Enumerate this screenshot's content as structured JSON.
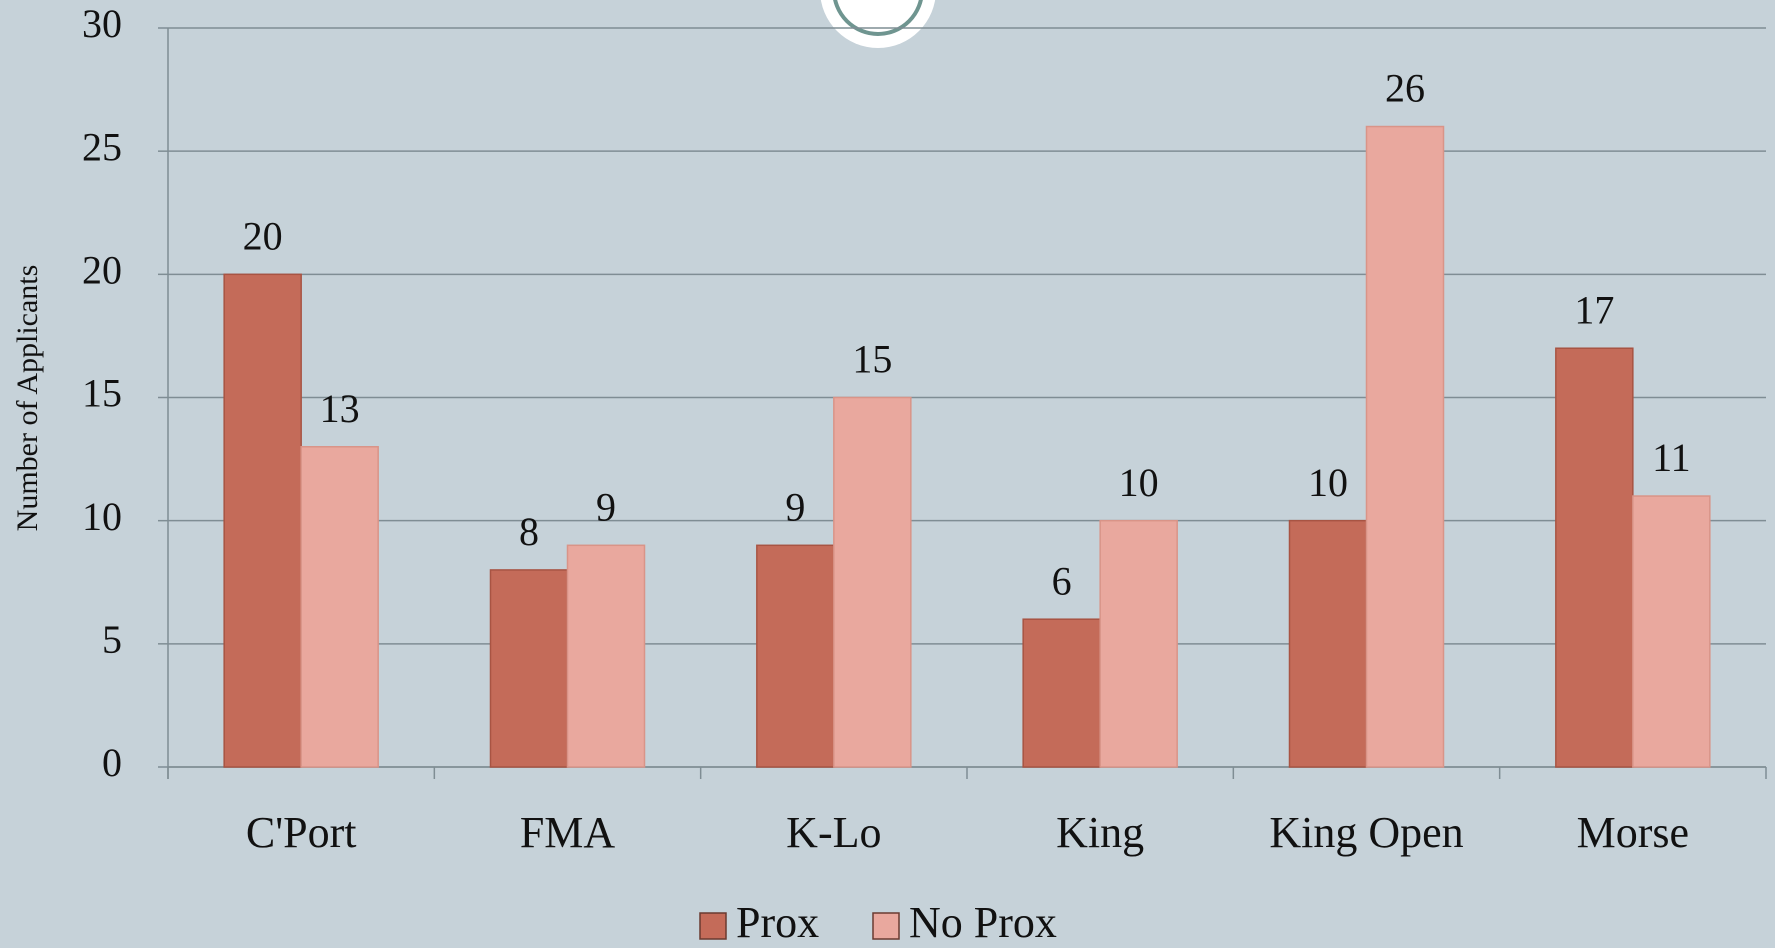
{
  "chart_data": {
    "type": "bar",
    "y_axis_label": "Number of Applicants",
    "categories": [
      "C'Port",
      "FMA",
      "K-Lo",
      "King",
      "King Open",
      "Morse"
    ],
    "series": [
      {
        "name": "Prox",
        "color": "#c46b59",
        "values": [
          20,
          8,
          9,
          6,
          10,
          17
        ]
      },
      {
        "name": "No Prox",
        "color": "#e9a89e",
        "values": [
          13,
          9,
          15,
          10,
          26,
          11
        ]
      }
    ],
    "ylim": [
      0,
      30
    ],
    "yticks": [
      0,
      5,
      10,
      15,
      20,
      25,
      30
    ],
    "grid": true,
    "legend": "bottom"
  }
}
